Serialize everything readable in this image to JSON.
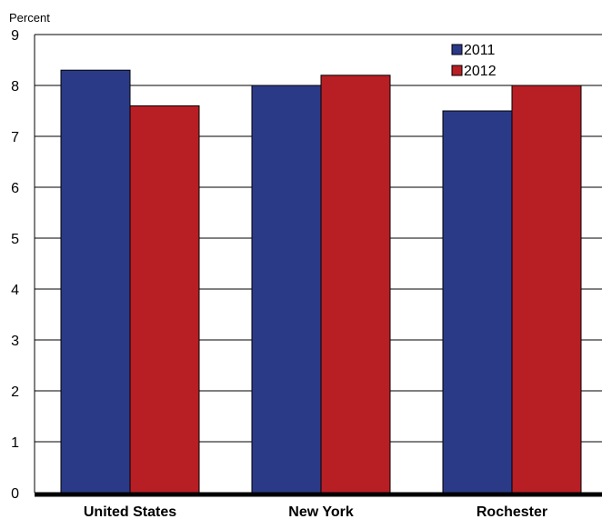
{
  "chart_data": {
    "type": "bar",
    "title": "",
    "xlabel": "",
    "ylabel": "Percent",
    "ylim": [
      0,
      9
    ],
    "yticks": [
      0,
      1,
      2,
      3,
      4,
      5,
      6,
      7,
      8,
      9
    ],
    "grid": true,
    "legend_position": "top-right",
    "categories": [
      "United States",
      "New York",
      "Rochester"
    ],
    "series": [
      {
        "name": "2011",
        "color": "#2b3a87",
        "values": [
          8.3,
          8.0,
          7.5
        ]
      },
      {
        "name": "2012",
        "color": "#b71f24",
        "values": [
          7.6,
          8.2,
          8.0
        ]
      }
    ]
  }
}
